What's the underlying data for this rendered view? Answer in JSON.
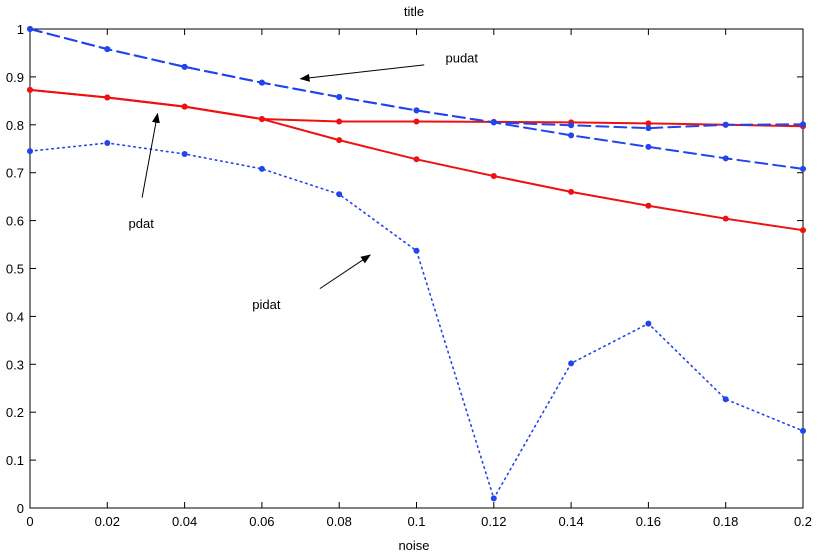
{
  "chart_data": {
    "type": "line",
    "title": "title",
    "xlabel": "noise",
    "ylabel": "",
    "xlim": [
      0,
      0.2
    ],
    "ylim": [
      0,
      1
    ],
    "xticks": [
      0,
      0.02,
      0.04,
      0.06,
      0.08,
      0.1,
      0.12,
      0.14,
      0.16,
      0.18,
      0.2
    ],
    "xtick_labels": [
      "0",
      "0.02",
      "0.04",
      "0.06",
      "0.08",
      "0.1",
      "0.12",
      "0.14",
      "0.16",
      "0.18",
      "0.2"
    ],
    "yticks": [
      0,
      0.1,
      0.2,
      0.3,
      0.4,
      0.5,
      0.6,
      0.7,
      0.8,
      0.9,
      1
    ],
    "ytick_labels": [
      "0",
      "0.1",
      "0.2",
      "0.3",
      "0.4",
      "0.5",
      "0.6",
      "0.7",
      "0.8",
      "0.9",
      "1"
    ],
    "grid": false,
    "x": [
      0,
      0.02,
      0.04,
      0.06,
      0.08,
      0.1,
      0.12,
      0.14,
      0.16,
      0.18,
      0.2
    ],
    "series": [
      {
        "color": "#ee1111",
        "style": "solid",
        "marker": "dot",
        "values": [
          0.873,
          0.857,
          0.838,
          0.812,
          0.807,
          0.807,
          0.806,
          0.805,
          0.803,
          0.8,
          0.797
        ]
      },
      {
        "color": "#ee1111",
        "style": "solid",
        "marker": "dot",
        "values": [
          0.873,
          0.857,
          0.838,
          0.812,
          0.768,
          0.728,
          0.693,
          0.66,
          0.631,
          0.604,
          0.58
        ]
      },
      {
        "color": "#2244ee",
        "style": "dashed",
        "marker": "dot",
        "values": [
          1.0,
          0.958,
          0.921,
          0.888,
          0.858,
          0.83,
          0.805,
          0.799,
          0.793,
          0.8,
          0.801
        ]
      },
      {
        "color": "#2244ee",
        "style": "dashed",
        "marker": "dot",
        "values": [
          1.0,
          0.958,
          0.921,
          0.888,
          0.858,
          0.83,
          0.805,
          0.778,
          0.754,
          0.73,
          0.708
        ]
      },
      {
        "color": "#2244ee",
        "style": "dotted",
        "marker": "dot",
        "values": [
          0.745,
          0.762,
          0.739,
          0.708,
          0.655,
          0.537,
          0.02,
          0.302,
          0.385,
          0.227,
          0.161
        ]
      }
    ],
    "annotations": [
      {
        "text": "pudat",
        "label_at": [
          0.1075,
          0.93
        ],
        "arrow_from": [
          0.102,
          0.925
        ],
        "arrow_to": [
          0.07,
          0.896
        ]
      },
      {
        "text": "pdat",
        "label_at": [
          0.0255,
          0.585
        ],
        "arrow_from": [
          0.029,
          0.648
        ],
        "arrow_to": [
          0.033,
          0.823
        ]
      },
      {
        "text": "pidat",
        "label_at": [
          0.0575,
          0.415
        ],
        "arrow_from": [
          0.075,
          0.458
        ],
        "arrow_to": [
          0.088,
          0.528
        ]
      }
    ]
  }
}
